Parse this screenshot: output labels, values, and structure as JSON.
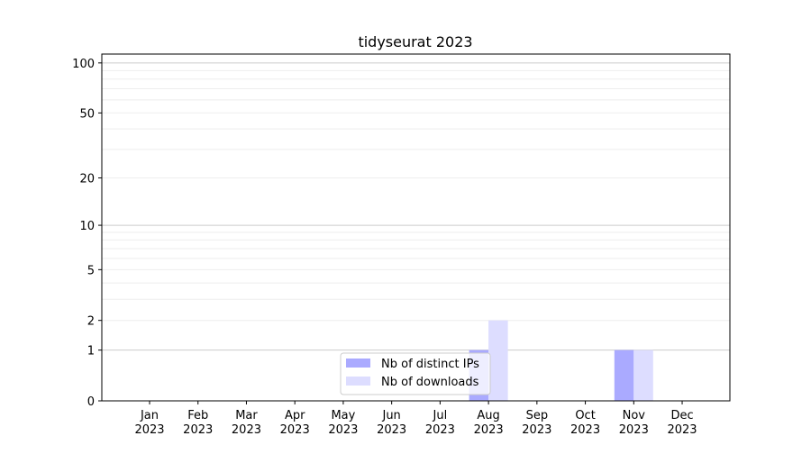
{
  "chart_data": {
    "type": "bar",
    "title": "tidyseurat 2023",
    "xlabel": "",
    "ylabel": "",
    "yscale": "log(1+y)",
    "ylim": [
      0,
      113
    ],
    "grid": "y major and minor",
    "legend_placement": "lower-center",
    "categories": [
      "Jan\n2023",
      "Feb\n2023",
      "Mar\n2023",
      "Apr\n2023",
      "May\n2023",
      "Jun\n2023",
      "Jul\n2023",
      "Aug\n2023",
      "Sep\n2023",
      "Oct\n2023",
      "Nov\n2023",
      "Dec\n2023"
    ],
    "x_tick_labels": [
      [
        "Jan",
        "2023"
      ],
      [
        "Feb",
        "2023"
      ],
      [
        "Mar",
        "2023"
      ],
      [
        "Apr",
        "2023"
      ],
      [
        "May",
        "2023"
      ],
      [
        "Jun",
        "2023"
      ],
      [
        "Jul",
        "2023"
      ],
      [
        "Aug",
        "2023"
      ],
      [
        "Sep",
        "2023"
      ],
      [
        "Oct",
        "2023"
      ],
      [
        "Nov",
        "2023"
      ],
      [
        "Dec",
        "2023"
      ]
    ],
    "y_ticks": [
      0,
      1,
      2,
      5,
      10,
      20,
      50,
      100
    ],
    "y_tick_labels": [
      "0",
      "1",
      "2",
      "5",
      "10",
      "20",
      "50",
      "100"
    ],
    "series": [
      {
        "name": "Nb of distinct IPs",
        "color": "#aaaaff",
        "values": [
          0,
          0,
          0,
          0,
          0,
          0,
          0,
          1,
          0,
          0,
          1,
          0
        ]
      },
      {
        "name": "Nb of downloads",
        "color": "#ddddff",
        "values": [
          0,
          0,
          0,
          0,
          0,
          0,
          0,
          2,
          0,
          0,
          1,
          0
        ]
      }
    ]
  }
}
